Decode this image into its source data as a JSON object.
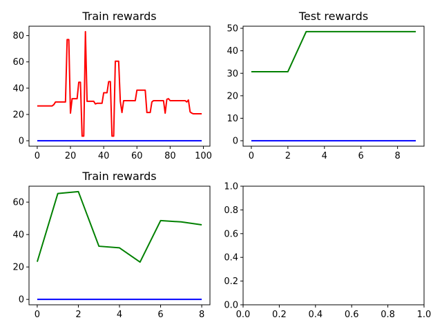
{
  "chart_data": [
    {
      "type": "line",
      "title": "Train rewards",
      "xlim": [
        -4.95,
        103.95
      ],
      "ylim": [
        -4.15,
        87.15
      ],
      "xticks": [
        0,
        20,
        40,
        60,
        80,
        100
      ],
      "yticks": [
        0,
        20,
        40,
        60,
        80
      ],
      "series": [
        {
          "color": "#ff0000",
          "x": [
            0,
            1,
            2,
            3,
            4,
            5,
            6,
            7,
            8,
            9,
            10,
            11,
            12,
            13,
            14,
            15,
            16,
            17,
            18,
            19,
            20,
            21,
            22,
            23,
            24,
            25,
            26,
            27,
            28,
            29,
            30,
            31,
            32,
            33,
            34,
            35,
            36,
            37,
            38,
            39,
            40,
            41,
            42,
            43,
            44,
            45,
            46,
            47,
            48,
            49,
            50,
            51,
            52,
            53,
            54,
            55,
            56,
            57,
            58,
            59,
            60,
            61,
            62,
            63,
            64,
            65,
            66,
            67,
            68,
            69,
            70,
            71,
            72,
            73,
            74,
            75,
            76,
            77,
            78,
            79,
            80,
            81,
            82,
            83,
            84,
            85,
            86,
            87,
            88,
            89,
            90,
            91,
            92,
            93,
            94,
            95,
            96,
            97,
            98,
            99
          ],
          "y": [
            26.5,
            26.5,
            26.5,
            26.5,
            26.5,
            26.5,
            26.5,
            26.5,
            26.5,
            26.5,
            27.5,
            29.5,
            29.5,
            29.5,
            29.5,
            29.5,
            29.5,
            29.5,
            77,
            77,
            21,
            32,
            32,
            32,
            32,
            44.5,
            44.5,
            3.5,
            3.5,
            83,
            30,
            30,
            30,
            30,
            30,
            28,
            28.5,
            28.5,
            28.5,
            28.5,
            36.5,
            36.5,
            36.5,
            45,
            45,
            3.5,
            3.5,
            60.5,
            60.5,
            60.5,
            30,
            21.5,
            30.5,
            30.5,
            30.5,
            30.5,
            30.5,
            30.5,
            30.5,
            30.5,
            38.5,
            38.5,
            38.5,
            38.5,
            38.5,
            38.5,
            21.5,
            21.5,
            21.5,
            29.5,
            30.5,
            30.5,
            30.5,
            30.5,
            30.5,
            30.5,
            30.5,
            21,
            31.5,
            32,
            30.5,
            30.5,
            30.5,
            30.5,
            30.5,
            30.5,
            30.5,
            30.5,
            30.5,
            30.5,
            29.5,
            31,
            22,
            21,
            20.5,
            20.5,
            20.5,
            20.5,
            20.5,
            20.5
          ]
        },
        {
          "color": "#0000ff",
          "x": [
            0,
            99
          ],
          "y": [
            0,
            0
          ]
        }
      ]
    },
    {
      "type": "line",
      "title": "Test rewards",
      "xlim": [
        -0.45,
        9.45
      ],
      "ylim": [
        -2.43,
        50.93
      ],
      "xticks": [
        0,
        2,
        4,
        6,
        8
      ],
      "yticks": [
        0,
        10,
        20,
        30,
        40,
        50
      ],
      "series": [
        {
          "color": "#008000",
          "x": [
            0,
            1,
            2,
            3,
            4,
            5,
            6,
            7,
            8,
            9
          ],
          "y": [
            30.7,
            30.7,
            30.7,
            48.5,
            48.5,
            48.5,
            48.5,
            48.5,
            48.5,
            48.5
          ]
        },
        {
          "color": "#0000ff",
          "x": [
            0,
            9
          ],
          "y": [
            0,
            0
          ]
        }
      ]
    },
    {
      "type": "line",
      "title": "Train rewards",
      "xlim": [
        -0.4,
        8.4
      ],
      "ylim": [
        -3.33,
        69.83
      ],
      "xticks": [
        0,
        2,
        4,
        6,
        8
      ],
      "yticks": [
        0,
        20,
        40,
        60
      ],
      "series": [
        {
          "color": "#008000",
          "x": [
            0,
            1,
            2,
            3,
            4,
            5,
            6,
            7,
            8
          ],
          "y": [
            23.2,
            65.3,
            66.5,
            32.8,
            31.8,
            23,
            48.6,
            47.8,
            46
          ]
        },
        {
          "color": "#0000ff",
          "x": [
            0,
            8
          ],
          "y": [
            0,
            0
          ]
        }
      ]
    },
    {
      "type": "line",
      "title": "",
      "xlim": [
        0,
        1
      ],
      "ylim": [
        0,
        1
      ],
      "xticks": [
        0.0,
        0.2,
        0.4,
        0.6,
        0.8,
        1.0
      ],
      "yticks": [
        0.0,
        0.2,
        0.4,
        0.6,
        0.8,
        1.0
      ],
      "series": []
    }
  ]
}
